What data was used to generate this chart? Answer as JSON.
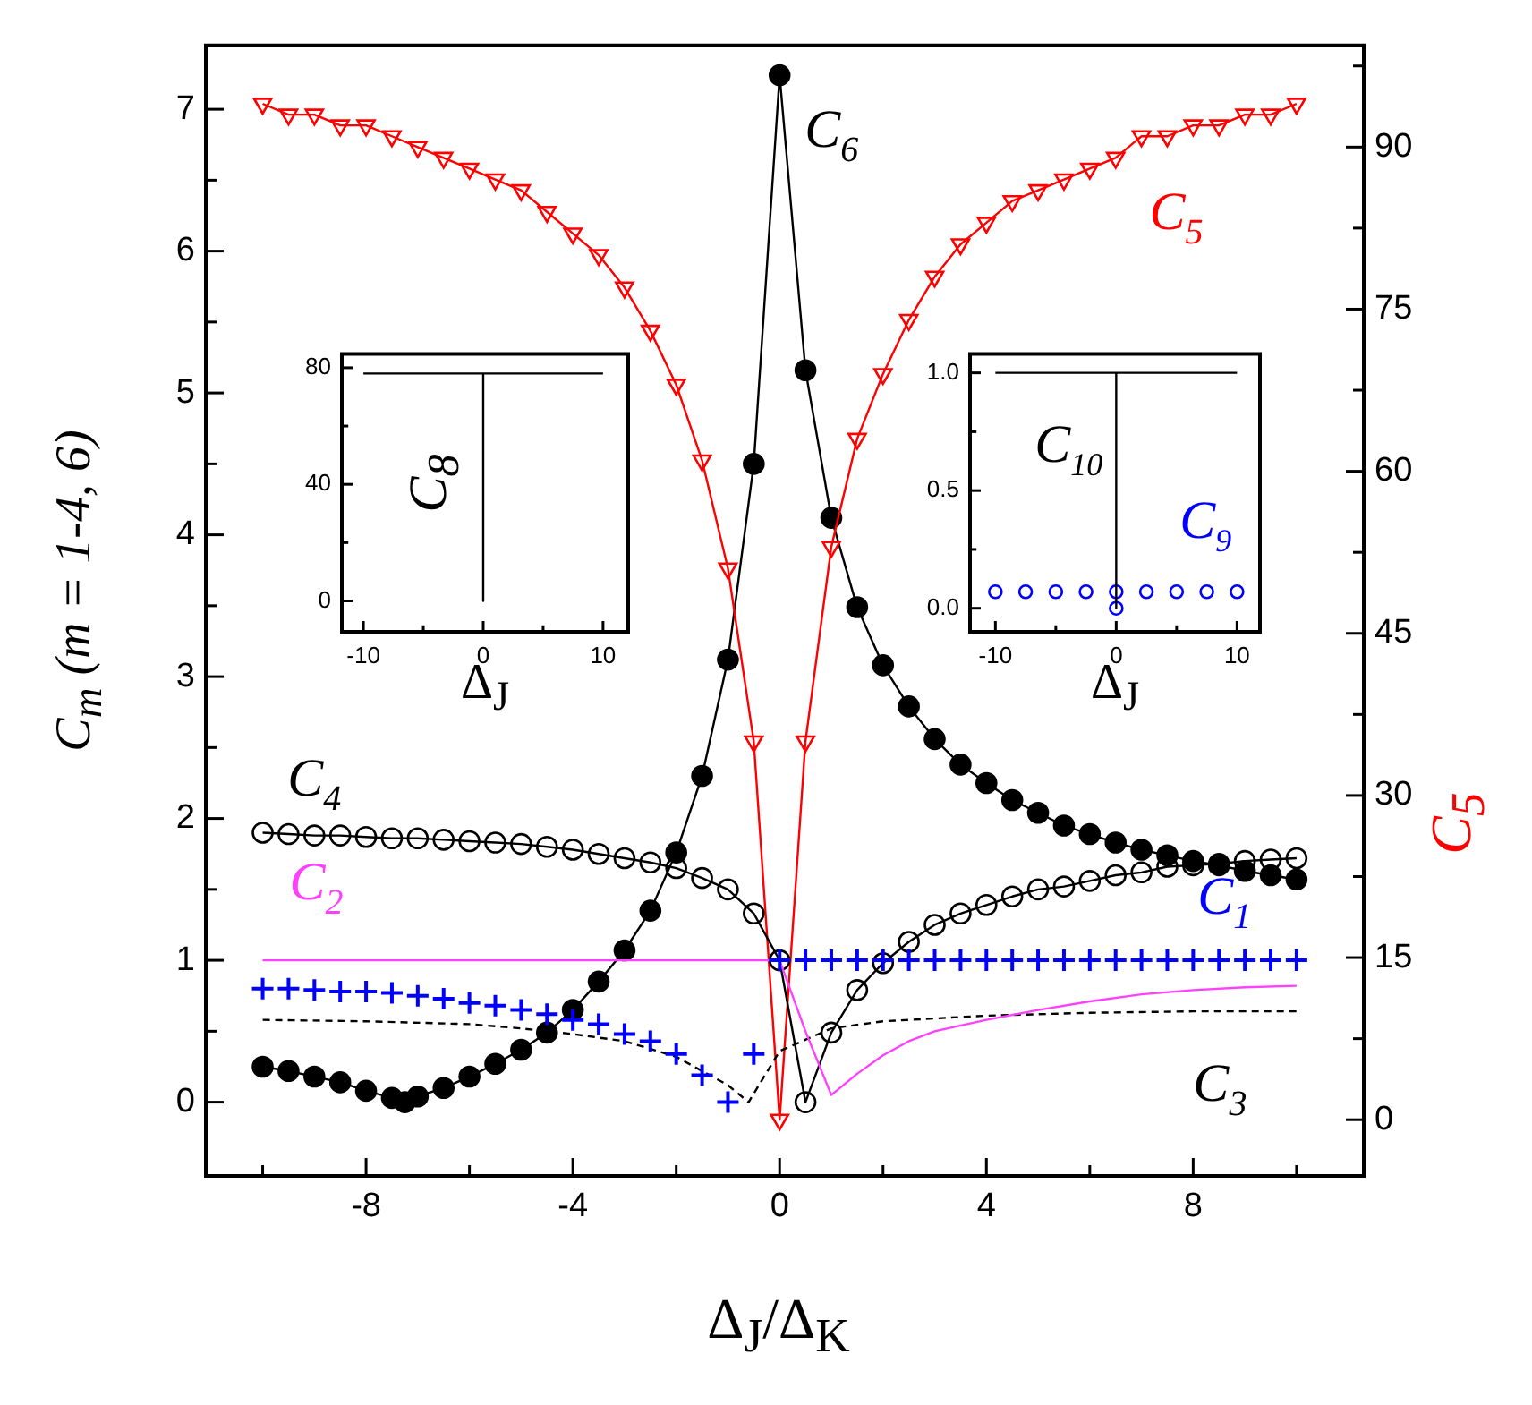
{
  "chart_data": [
    {
      "type": "line",
      "xlabel": "Δ$_{J}$/Δ$_{K}$",
      "ylabel": "C$_{m}$ (m = 1-4, 6)",
      "y2label": "C$_{5}$",
      "x": [
        -10,
        -9.5,
        -9,
        -8.5,
        -8,
        -7.5,
        -7,
        -6.5,
        -6,
        -5.5,
        -5,
        -4.5,
        -4,
        -3.5,
        -3,
        -2.5,
        -2,
        -1.5,
        -1,
        -0.5,
        0,
        0.5,
        1,
        1.5,
        2,
        2.5,
        3,
        3.5,
        4,
        4.5,
        5,
        5.5,
        6,
        6.5,
        7,
        7.5,
        8,
        8.5,
        9,
        9.5,
        10
      ],
      "xlim": [
        -11.1,
        11.3
      ],
      "xticks": [
        {
          "value": -10,
          "label": null
        },
        -8,
        {
          "value": -6,
          "label": null
        },
        -4,
        {
          "value": -2,
          "label": null
        },
        0,
        {
          "value": 2,
          "label": null
        },
        4,
        {
          "value": 6,
          "label": null
        },
        8,
        {
          "value": 10,
          "label": null
        }
      ],
      "ylim": [
        -0.52,
        7.45
      ],
      "yticks": [
        0,
        {
          "value": 0.5,
          "label": null
        },
        1,
        {
          "value": 1.5,
          "label": null
        },
        2,
        {
          "value": 2.5,
          "label": null
        },
        3,
        {
          "value": 3.5,
          "label": null
        },
        4,
        {
          "value": 4.5,
          "label": null
        },
        5,
        {
          "value": 5.5,
          "label": null
        },
        6,
        {
          "value": 6.5,
          "label": null
        },
        7
      ],
      "y2lim": [
        -5.2,
        99.4
      ],
      "y2ticks": [
        0,
        {
          "value": 7.5,
          "label": null
        },
        15,
        {
          "value": 22.5,
          "label": null
        },
        30,
        {
          "value": 37.5,
          "label": null
        },
        45,
        {
          "value": 52.5,
          "label": null
        },
        60,
        {
          "value": 67.5,
          "label": null
        },
        75,
        {
          "value": 82.5,
          "label": null
        },
        90,
        {
          "value": 97.5,
          "label": null
        }
      ],
      "grid": false,
      "legend": false,
      "series": [
        {
          "name": "C$_{1}$",
          "type": "scatter",
          "marker": "cross",
          "color": "#0000ff",
          "values": [
            0.8,
            0.8,
            0.79,
            0.78,
            0.78,
            0.77,
            0.75,
            0.73,
            0.7,
            0.68,
            0.65,
            0.62,
            0.58,
            0.55,
            0.48,
            0.43,
            0.34,
            0.19,
            0.0,
            0.34,
            1.0,
            1.0,
            1.0,
            1.0,
            1.0,
            1.0,
            1.0,
            1.0,
            1.0,
            1.0,
            1.0,
            1.0,
            1.0,
            1.0,
            1.0,
            1.0,
            1.0,
            1.0,
            1.0,
            1.0,
            1.0
          ]
        },
        {
          "name": "C$_{2}$",
          "type": "line",
          "marker": "none",
          "color": "#ff40ff",
          "x": [
            -10,
            0,
            0.5,
            1,
            1.5,
            2,
            2.5,
            3,
            4,
            5,
            6,
            7,
            8,
            9,
            10
          ],
          "values": [
            1,
            1,
            0.5,
            0.05,
            0.2,
            0.33,
            0.43,
            0.5,
            0.58,
            0.65,
            0.71,
            0.76,
            0.79,
            0.81,
            0.82
          ]
        },
        {
          "name": "C$_{3}$",
          "type": "line",
          "marker": "none",
          "line_style": "dashed",
          "color": "#000000",
          "x": [
            -10,
            -8,
            -6,
            -5,
            -4,
            -3,
            -2,
            -1,
            -0.6,
            0,
            1,
            2,
            4,
            6,
            8,
            10
          ],
          "values": [
            0.58,
            0.57,
            0.55,
            0.52,
            0.48,
            0.43,
            0.32,
            0.12,
            0,
            0.36,
            0.52,
            0.57,
            0.61,
            0.63,
            0.64,
            0.64
          ]
        },
        {
          "name": "C$_{4}$",
          "type": "line",
          "marker": "circle",
          "color": "#000000",
          "values": [
            1.9,
            1.89,
            1.88,
            1.88,
            1.87,
            1.86,
            1.86,
            1.85,
            1.84,
            1.83,
            1.82,
            1.8,
            1.78,
            1.75,
            1.72,
            1.69,
            1.65,
            1.58,
            1.5,
            1.33,
            1.0,
            0.0,
            0.49,
            0.79,
            0.98,
            1.13,
            1.25,
            1.33,
            1.39,
            1.45,
            1.5,
            1.52,
            1.56,
            1.6,
            1.62,
            1.66,
            1.67,
            1.68,
            1.7,
            1.71,
            1.72
          ]
        },
        {
          "name": "C$_{5}$",
          "type": "line",
          "marker": "triangle",
          "axis": "y2",
          "color": "#ff0000",
          "values": [
            94,
            93,
            93,
            92,
            92,
            91,
            90,
            89,
            88,
            87,
            86,
            84,
            82,
            80,
            77,
            73,
            68,
            61,
            51,
            35,
            0,
            35,
            53,
            63,
            69,
            74,
            78,
            81,
            83,
            85,
            86,
            87,
            88,
            89,
            91,
            91,
            92,
            92,
            93,
            93,
            94
          ]
        },
        {
          "name": "C$_{6}$",
          "type": "line",
          "marker": "circle",
          "color": "#000000",
          "x": [
            -10,
            -9.5,
            -9,
            -8.5,
            -8,
            -7.5,
            -7.25,
            -7,
            -6.5,
            -6,
            -5.5,
            -5,
            -4.5,
            -4,
            -3.5,
            -3,
            -2.5,
            -2,
            -1.5,
            -1,
            -0.5,
            0,
            0.5,
            1,
            1.5,
            2,
            2.5,
            3,
            3.5,
            4,
            4.5,
            5,
            5.5,
            6,
            6.5,
            7,
            7.5,
            8,
            8.5,
            9,
            9.5,
            10
          ],
          "values": [
            0.25,
            0.22,
            0.18,
            0.14,
            0.08,
            0.03,
            0.0,
            0.04,
            0.1,
            0.18,
            0.27,
            0.37,
            0.49,
            0.65,
            0.85,
            1.07,
            1.35,
            1.76,
            2.3,
            3.12,
            4.5,
            7.24,
            5.16,
            4.12,
            3.49,
            3.08,
            2.79,
            2.56,
            2.38,
            2.25,
            2.13,
            2.04,
            1.95,
            1.89,
            1.83,
            1.78,
            1.74,
            1.7,
            1.67,
            1.63,
            1.6,
            1.57
          ]
        }
      ]
    },
    {
      "type": "line",
      "xlabel": "Δ$_{J}$",
      "ylabel": "C$_{8}$",
      "xlim": [
        -11.8,
        12.1
      ],
      "xticks": [
        -10,
        {
          "value": -5,
          "label": null
        },
        0,
        {
          "value": 5,
          "label": null
        },
        10
      ],
      "ylim": [
        -10.6,
        84.7
      ],
      "yticks": [
        0,
        {
          "value": 20,
          "label": null
        },
        40,
        {
          "value": 60,
          "label": null
        },
        80
      ],
      "grid": false,
      "legend": false,
      "series": [
        {
          "type": "line",
          "marker": "none",
          "color": "#000000",
          "x": [
            -10,
            0,
            0,
            0,
            10
          ],
          "values": [
            78,
            78,
            0,
            78,
            78
          ]
        }
      ]
    },
    {
      "type": "line",
      "xlabel": "Δ$_{J}$",
      "xlim": [
        -12.1,
        11.9
      ],
      "xticks": [
        -10,
        {
          "value": -5,
          "label": null
        },
        0,
        {
          "value": 5,
          "label": null
        },
        10
      ],
      "ylim": [
        -0.1,
        1.08
      ],
      "yticks": [
        {
          "value": 0,
          "label": "0.0"
        },
        {
          "value": 0.25,
          "label": null
        },
        {
          "value": 0.5,
          "label": "0.5"
        },
        {
          "value": 0.75,
          "label": null
        },
        {
          "value": 1,
          "label": "1.0"
        }
      ],
      "grid": false,
      "legend": false,
      "series": [
        {
          "name": "C$_{10}$",
          "type": "line",
          "marker": "none",
          "color": "#000000",
          "x": [
            -10,
            0,
            0,
            0,
            10
          ],
          "values": [
            1,
            1,
            0,
            1,
            1
          ]
        },
        {
          "name": "C$_{9}$",
          "type": "scatter",
          "marker": "circle",
          "color": "#0000ff",
          "x": [
            -10,
            -7.5,
            -5,
            -2.5,
            0,
            0,
            2.5,
            5,
            7.5,
            10
          ],
          "values": [
            0.07,
            0.07,
            0.07,
            0.07,
            0.07,
            0.0,
            0.07,
            0.07,
            0.07,
            0.07
          ]
        }
      ]
    }
  ]
}
